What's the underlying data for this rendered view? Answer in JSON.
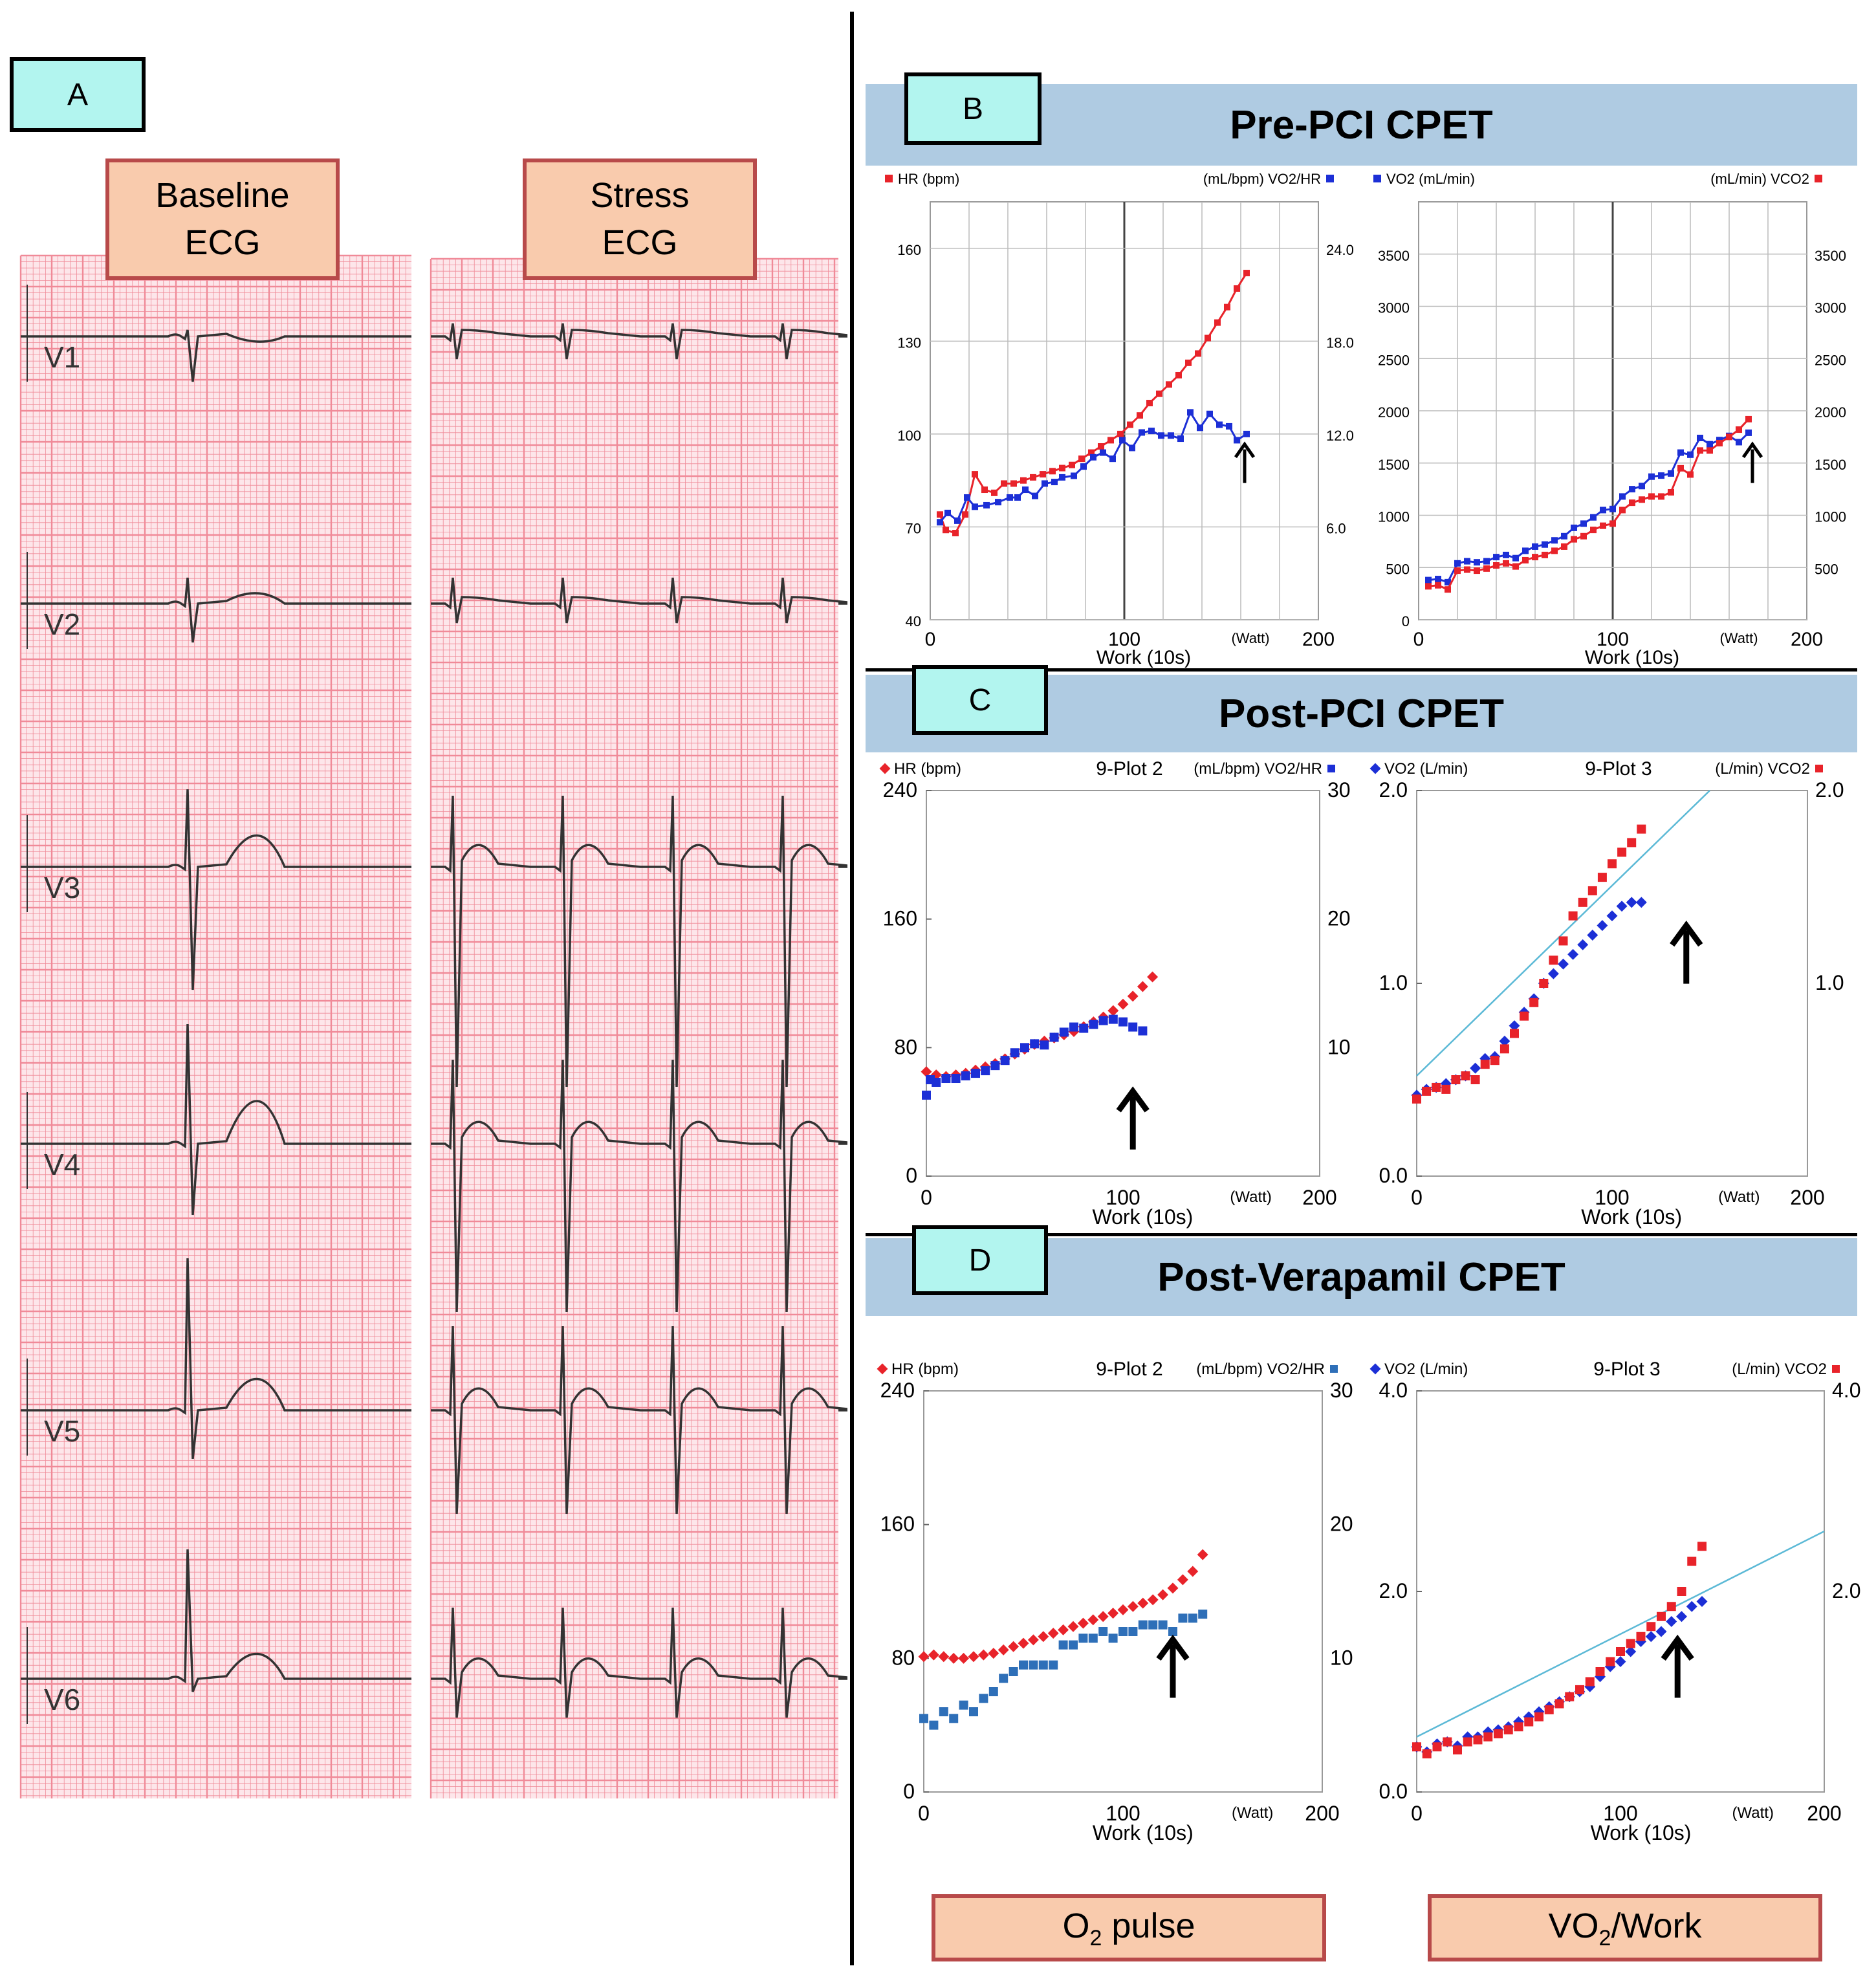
{
  "panel_a": {
    "label": "A",
    "baseline_title_line1": "Baseline",
    "baseline_title_line2": "ECG",
    "stress_title_line1": "Stress",
    "stress_title_line2": "ECG",
    "leads": [
      "V1",
      "V2",
      "V3",
      "V4",
      "V5",
      "V6"
    ]
  },
  "panel_b": {
    "label": "B",
    "title": "Pre-PCI CPET"
  },
  "panel_c": {
    "label": "C",
    "title": "Post-PCI CPET"
  },
  "panel_d": {
    "label": "D",
    "title": "Post-Verapamil CPET"
  },
  "footer": {
    "o2_pulse": {
      "main": "O",
      "sub": "2",
      "rest": " pulse"
    },
    "vo2_work": {
      "main": "VO",
      "sub": "2",
      "rest": "/Work"
    }
  },
  "colors": {
    "hr": "#e8232a",
    "vo2hr": "#1c2fd6",
    "vo2hr_d": "#2e6fb8",
    "vco2": "#e8232a",
    "vo2": "#1c2fd6",
    "fitline": "#5bb9d6",
    "ecg_grid": "#f08a98",
    "ecg_trace": "#333333"
  },
  "chart_data": [
    {
      "type": "line",
      "panel": "B-left",
      "legend_left": "HR (bpm)",
      "legend_right": "(mL/bpm) VO2/HR",
      "xlabel": "Work (10s)",
      "x_unit": "(Watt)",
      "x_ticks": [
        "0",
        "100",
        "200"
      ],
      "xlim": [
        0,
        200
      ],
      "y_left_ticks": [
        "40",
        "70",
        "100",
        "130",
        "160"
      ],
      "ylim_left": [
        40,
        175
      ],
      "y_right_ticks": [
        "6.0",
        "12.0",
        "18.0",
        "24.0"
      ],
      "ylim_right": [
        0,
        27
      ],
      "grid": true,
      "series": [
        {
          "name": "HR (bpm)",
          "axis": "left",
          "x": [
            5,
            8,
            13,
            18,
            23,
            28,
            33,
            38,
            43,
            48,
            53,
            58,
            63,
            68,
            73,
            78,
            83,
            88,
            93,
            98,
            103,
            108,
            113,
            118,
            123,
            128,
            133,
            138,
            143,
            148,
            153,
            158,
            163
          ],
          "values": [
            74,
            69,
            68,
            74,
            87,
            82,
            81,
            84,
            84,
            85,
            86,
            87,
            88,
            89,
            90,
            92,
            94,
            96,
            98,
            100,
            103,
            106,
            110,
            113,
            116,
            119,
            123,
            126,
            131,
            136,
            141,
            147,
            152
          ]
        },
        {
          "name": "VO2/HR",
          "axis": "right",
          "x": [
            5,
            9,
            14,
            19,
            23,
            29,
            35,
            41,
            45,
            49,
            54,
            59,
            64,
            68,
            74,
            79,
            84,
            89,
            94,
            99,
            104,
            109,
            114,
            119,
            124,
            129,
            134,
            139,
            144,
            149,
            154,
            158,
            163
          ],
          "values": [
            6.3,
            6.9,
            6.4,
            7.9,
            7.3,
            7.4,
            7.6,
            7.9,
            7.9,
            8.4,
            8.0,
            8.8,
            8.9,
            9.2,
            9.3,
            9.9,
            10.5,
            10.8,
            10.4,
            11.6,
            11.1,
            12.1,
            12.2,
            11.9,
            11.9,
            11.7,
            13.4,
            12.4,
            13.3,
            12.6,
            12.5,
            11.6,
            12.0
          ]
        }
      ]
    },
    {
      "type": "line",
      "panel": "B-right",
      "legend_left": "VO2 (mL/min)",
      "legend_right": "(mL/min) VCO2",
      "xlabel": "Work (10s)",
      "x_unit": "(Watt)",
      "x_ticks": [
        "0",
        "100",
        "200"
      ],
      "xlim": [
        0,
        200
      ],
      "y_left_ticks": [
        "0",
        "500",
        "1000",
        "1500",
        "2000",
        "2500",
        "3000",
        "3500"
      ],
      "ylim_left": [
        0,
        4000
      ],
      "y_right_ticks": [
        "500",
        "1000",
        "1500",
        "2000",
        "2500",
        "3000",
        "3500"
      ],
      "ylim_right": [
        0,
        4000
      ],
      "grid": true,
      "series": [
        {
          "name": "VO2 (mL/min)",
          "axis": "left",
          "x": [
            5,
            10,
            15,
            20,
            25,
            30,
            35,
            40,
            45,
            50,
            55,
            60,
            65,
            70,
            75,
            80,
            85,
            90,
            95,
            100,
            105,
            110,
            115,
            120,
            125,
            130,
            135,
            140,
            145,
            150,
            155,
            160,
            165,
            170
          ],
          "values": [
            380,
            390,
            360,
            540,
            560,
            550,
            560,
            600,
            620,
            590,
            660,
            700,
            720,
            760,
            800,
            880,
            920,
            980,
            1050,
            1060,
            1180,
            1250,
            1280,
            1370,
            1380,
            1400,
            1600,
            1580,
            1740,
            1680,
            1720,
            1760,
            1700,
            1790
          ]
        },
        {
          "name": "VCO2",
          "axis": "right",
          "x": [
            5,
            10,
            15,
            20,
            25,
            30,
            35,
            40,
            45,
            50,
            55,
            60,
            65,
            70,
            75,
            80,
            85,
            90,
            95,
            100,
            105,
            110,
            115,
            120,
            125,
            130,
            135,
            140,
            145,
            150,
            155,
            160,
            165,
            170
          ],
          "values": [
            320,
            330,
            290,
            470,
            480,
            470,
            490,
            520,
            540,
            510,
            570,
            600,
            620,
            660,
            700,
            770,
            800,
            860,
            900,
            920,
            1050,
            1120,
            1150,
            1180,
            1180,
            1220,
            1450,
            1390,
            1620,
            1620,
            1690,
            1750,
            1820,
            1920
          ]
        }
      ]
    },
    {
      "type": "scatter",
      "panel": "C-left",
      "title": "9-Plot 2",
      "legend_left": "HR (bpm)",
      "legend_right": "(mL/bpm) VO2/HR",
      "xlabel": "Work (10s)",
      "x_unit": "(Watt)",
      "x_ticks": [
        "0",
        "100",
        "200"
      ],
      "xlim": [
        0,
        200
      ],
      "y_left_ticks": [
        "0",
        "80",
        "160",
        "240"
      ],
      "ylim_left": [
        0,
        240
      ],
      "y_right_ticks": [
        "10",
        "20",
        "30"
      ],
      "ylim_right": [
        0,
        30
      ],
      "series": [
        {
          "name": "HR (bpm)",
          "axis": "left",
          "x": [
            0,
            5,
            10,
            15,
            20,
            25,
            30,
            35,
            40,
            45,
            50,
            55,
            60,
            65,
            70,
            75,
            80,
            85,
            90,
            95,
            100,
            105,
            110,
            115
          ],
          "values": [
            65,
            63,
            62,
            63,
            64,
            66,
            68,
            70,
            73,
            76,
            79,
            82,
            84,
            86,
            88,
            90,
            93,
            96,
            99,
            103,
            107,
            112,
            118,
            124
          ]
        },
        {
          "name": "VO2/HR",
          "axis": "right",
          "x": [
            0,
            2,
            5,
            10,
            15,
            20,
            25,
            30,
            35,
            40,
            45,
            50,
            55,
            60,
            65,
            70,
            75,
            80,
            85,
            90,
            95,
            100,
            105,
            110
          ],
          "values": [
            6.3,
            7.5,
            7.3,
            7.6,
            7.6,
            7.8,
            8.0,
            8.2,
            8.6,
            9.0,
            9.6,
            10.0,
            10.3,
            10.2,
            10.8,
            11.2,
            11.6,
            11.5,
            11.8,
            12.1,
            12.2,
            12.0,
            11.6,
            11.3
          ]
        }
      ]
    },
    {
      "type": "scatter",
      "panel": "C-right",
      "title": "9-Plot 3",
      "legend_left": "VO2 (L/min)",
      "legend_right": "(L/min) VCO2",
      "xlabel": "Work (10s)",
      "x_unit": "(Watt)",
      "x_ticks": [
        "0",
        "100",
        "200"
      ],
      "xlim": [
        0,
        200
      ],
      "y_left_ticks": [
        "0.0",
        "1.0",
        "2.0"
      ],
      "ylim_left": [
        0,
        2.0
      ],
      "y_right_ticks": [
        "1.0",
        "2.0"
      ],
      "ylim_right": [
        0,
        2.0
      ],
      "reference_line": {
        "x": [
          0,
          150
        ],
        "y": [
          0.52,
          2.0
        ]
      },
      "series": [
        {
          "name": "VO2 (L/min)",
          "axis": "left",
          "x": [
            0,
            5,
            10,
            15,
            20,
            25,
            30,
            35,
            40,
            45,
            50,
            55,
            60,
            65,
            70,
            75,
            80,
            85,
            90,
            95,
            100,
            105,
            110,
            115
          ],
          "values": [
            0.42,
            0.45,
            0.46,
            0.48,
            0.5,
            0.52,
            0.56,
            0.61,
            0.62,
            0.7,
            0.78,
            0.85,
            0.92,
            1.0,
            1.05,
            1.1,
            1.15,
            1.2,
            1.25,
            1.3,
            1.35,
            1.4,
            1.42,
            1.42
          ]
        },
        {
          "name": "VCO2",
          "axis": "right",
          "x": [
            0,
            5,
            10,
            15,
            20,
            25,
            30,
            35,
            40,
            45,
            50,
            55,
            60,
            65,
            70,
            75,
            80,
            85,
            90,
            95,
            100,
            105,
            110,
            115
          ],
          "values": [
            0.4,
            0.44,
            0.46,
            0.45,
            0.5,
            0.52,
            0.5,
            0.58,
            0.6,
            0.66,
            0.74,
            0.83,
            0.9,
            1.0,
            1.12,
            1.22,
            1.35,
            1.42,
            1.48,
            1.55,
            1.62,
            1.68,
            1.73,
            1.8
          ]
        }
      ]
    },
    {
      "type": "scatter",
      "panel": "D-left",
      "title": "9-Plot 2",
      "legend_left": "HR (bpm)",
      "legend_right": "(mL/bpm) VO2/HR",
      "xlabel": "Work (10s)",
      "x_unit": "(Watt)",
      "x_ticks": [
        "0",
        "100",
        "200"
      ],
      "xlim": [
        0,
        200
      ],
      "y_left_ticks": [
        "0",
        "80",
        "160",
        "240"
      ],
      "ylim_left": [
        0,
        240
      ],
      "y_right_ticks": [
        "10",
        "20",
        "30"
      ],
      "ylim_right": [
        0,
        30
      ],
      "series": [
        {
          "name": "HR (bpm)",
          "axis": "left",
          "x": [
            0,
            5,
            10,
            15,
            20,
            25,
            30,
            35,
            40,
            45,
            50,
            55,
            60,
            65,
            70,
            75,
            80,
            85,
            90,
            95,
            100,
            105,
            110,
            115,
            120,
            125,
            130,
            135,
            140
          ],
          "values": [
            81,
            82,
            81,
            80,
            80,
            81,
            82,
            83,
            85,
            87,
            89,
            91,
            93,
            95,
            97,
            99,
            101,
            103,
            105,
            107,
            109,
            111,
            113,
            115,
            118,
            122,
            127,
            132,
            142
          ]
        },
        {
          "name": "VO2/HR",
          "axis": "right",
          "x": [
            0,
            5,
            10,
            15,
            20,
            25,
            30,
            35,
            40,
            45,
            50,
            55,
            60,
            65,
            70,
            75,
            80,
            85,
            90,
            95,
            100,
            105,
            110,
            115,
            120,
            125,
            130,
            135,
            140
          ],
          "values": [
            5.5,
            5.0,
            6.0,
            5.5,
            6.5,
            6.0,
            7.0,
            7.5,
            8.5,
            9.0,
            9.5,
            9.5,
            9.5,
            9.5,
            11.0,
            11.0,
            11.5,
            11.5,
            12.0,
            11.5,
            12.0,
            12.0,
            12.5,
            12.5,
            12.5,
            12.0,
            13.0,
            13.0,
            13.3
          ]
        }
      ]
    },
    {
      "type": "scatter",
      "panel": "D-right",
      "title": "9-Plot 3",
      "legend_left": "VO2 (L/min)",
      "legend_right": "(L/min) VCO2",
      "xlabel": "Work (10s)",
      "x_unit": "(Watt)",
      "x_ticks": [
        "0",
        "100",
        "200"
      ],
      "xlim": [
        0,
        200
      ],
      "y_left_ticks": [
        "0.0",
        "2.0",
        "4.0"
      ],
      "ylim_left": [
        0,
        4.0
      ],
      "y_right_ticks": [
        "2.0",
        "4.0"
      ],
      "ylim_right": [
        0,
        4.0
      ],
      "reference_line": {
        "x": [
          0,
          200
        ],
        "y": [
          0.55,
          2.6
        ]
      },
      "series": [
        {
          "name": "VO2 (L/min)",
          "axis": "left",
          "x": [
            0,
            5,
            10,
            15,
            20,
            25,
            30,
            35,
            40,
            45,
            50,
            55,
            60,
            65,
            70,
            75,
            80,
            85,
            90,
            95,
            100,
            105,
            110,
            115,
            120,
            125,
            130,
            135,
            140
          ],
          "values": [
            0.45,
            0.4,
            0.48,
            0.5,
            0.46,
            0.55,
            0.55,
            0.6,
            0.62,
            0.65,
            0.7,
            0.75,
            0.8,
            0.85,
            0.9,
            0.95,
            1.0,
            1.05,
            1.15,
            1.25,
            1.3,
            1.4,
            1.5,
            1.55,
            1.6,
            1.7,
            1.75,
            1.85,
            1.9
          ]
        },
        {
          "name": "VCO2",
          "axis": "right",
          "x": [
            0,
            5,
            10,
            15,
            20,
            25,
            30,
            35,
            40,
            45,
            50,
            55,
            60,
            65,
            70,
            75,
            80,
            85,
            90,
            95,
            100,
            105,
            110,
            115,
            120,
            125,
            130,
            135,
            140
          ],
          "values": [
            0.45,
            0.38,
            0.45,
            0.5,
            0.42,
            0.5,
            0.52,
            0.55,
            0.58,
            0.62,
            0.65,
            0.7,
            0.75,
            0.82,
            0.88,
            0.95,
            1.02,
            1.1,
            1.2,
            1.3,
            1.4,
            1.48,
            1.55,
            1.65,
            1.75,
            1.85,
            2.0,
            2.3,
            2.45
          ]
        }
      ]
    }
  ]
}
